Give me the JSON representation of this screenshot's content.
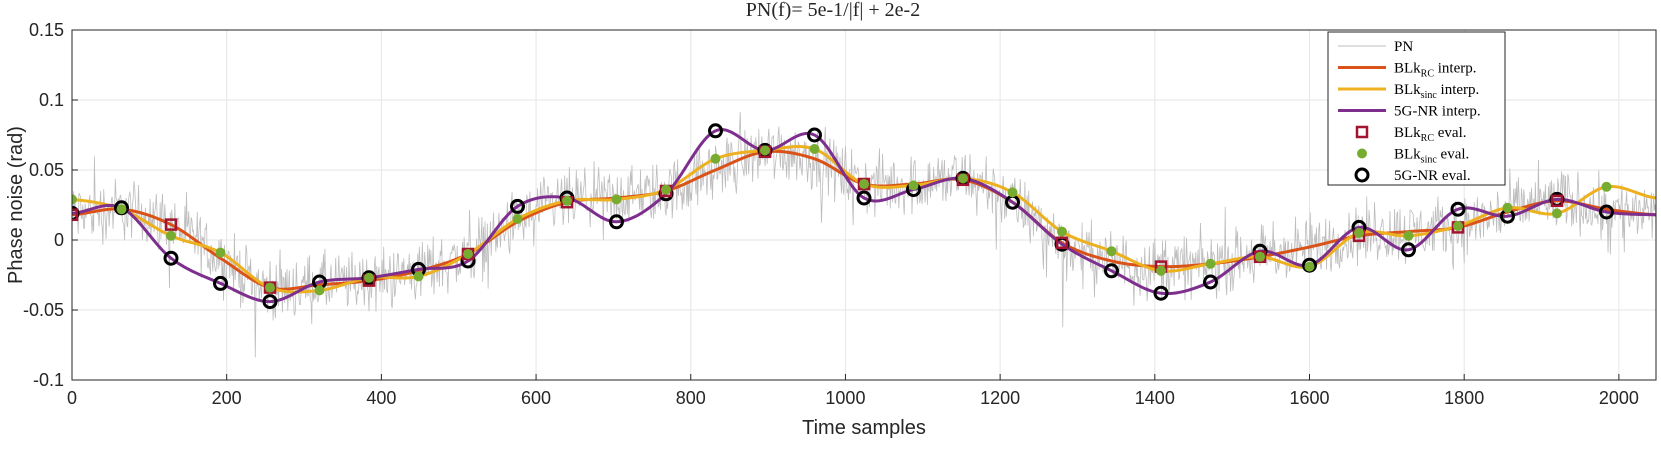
{
  "chart_data": {
    "type": "line",
    "title": "PN(f)= 5e-1/|f| + 2e-2",
    "xlabel": "Time samples",
    "ylabel": "Phase noise (rad)",
    "xlim": [
      0,
      2048
    ],
    "ylim": [
      -0.1,
      0.15
    ],
    "xticks": [
      0,
      200,
      400,
      600,
      800,
      1000,
      1200,
      1400,
      1600,
      1800,
      2000
    ],
    "yticks": [
      -0.1,
      -0.05,
      0,
      0.05,
      0.1,
      0.15
    ],
    "ytick_labels": [
      "-0.1",
      "-0.05",
      "0",
      "0.05",
      "0.1",
      "0.15"
    ],
    "grid": true,
    "legend_position": "top-right",
    "colors": {
      "pn": "#bdbdbd",
      "rc": "#d95319",
      "sinc": "#edb120",
      "nr": "#7e2f8e",
      "rc_marker": "#a2142f",
      "sinc_marker": "#77ac30",
      "nr_marker": "#000000"
    },
    "legend": [
      {
        "key": "pn",
        "kind": "line",
        "base": "PN",
        "sub": "",
        "suffix": ""
      },
      {
        "key": "rc",
        "kind": "line",
        "base": "BLk",
        "sub": "RC",
        "suffix": " interp."
      },
      {
        "key": "sinc",
        "kind": "line",
        "base": "BLk",
        "sub": "sinc",
        "suffix": " interp."
      },
      {
        "key": "nr",
        "kind": "line",
        "base": "5G-NR interp.",
        "sub": "",
        "suffix": ""
      },
      {
        "key": "rc_marker",
        "kind": "square",
        "base": "BLk",
        "sub": "RC",
        "suffix": " eval."
      },
      {
        "key": "sinc_marker",
        "kind": "dot",
        "base": "BLk",
        "sub": "sinc",
        "suffix": " eval."
      },
      {
        "key": "nr_marker",
        "kind": "circle",
        "base": "5G-NR eval.",
        "sub": "",
        "suffix": ""
      }
    ],
    "series": [
      {
        "name": "BLkRC interp.",
        "key": "rc",
        "style": "line",
        "x": [
          0,
          64,
          128,
          192,
          256,
          320,
          384,
          448,
          512,
          576,
          640,
          704,
          768,
          832,
          896,
          960,
          1024,
          1088,
          1152,
          1216,
          1280,
          1344,
          1408,
          1472,
          1536,
          1600,
          1664,
          1728,
          1792,
          1856,
          1920,
          1984,
          2048
        ],
        "y": [
          0.018,
          0.022,
          0.011,
          -0.013,
          -0.034,
          -0.032,
          -0.029,
          -0.022,
          -0.01,
          0.013,
          0.027,
          0.03,
          0.035,
          0.05,
          0.063,
          0.058,
          0.04,
          0.04,
          0.043,
          0.027,
          -0.002,
          -0.015,
          -0.019,
          -0.017,
          -0.012,
          -0.005,
          0.003,
          0.006,
          0.009,
          0.02,
          0.028,
          0.022,
          0.018
        ]
      },
      {
        "name": "BLksinc interp.",
        "key": "sinc",
        "style": "line",
        "x": [
          0,
          64,
          128,
          192,
          256,
          320,
          384,
          448,
          512,
          576,
          640,
          704,
          768,
          832,
          896,
          960,
          1024,
          1088,
          1152,
          1216,
          1280,
          1344,
          1408,
          1472,
          1536,
          1600,
          1664,
          1728,
          1792,
          1856,
          1920,
          1984,
          2048
        ],
        "y": [
          0.029,
          0.022,
          0.003,
          -0.009,
          -0.034,
          -0.036,
          -0.027,
          -0.026,
          -0.01,
          0.015,
          0.028,
          0.029,
          0.036,
          0.058,
          0.064,
          0.065,
          0.04,
          0.039,
          0.044,
          0.034,
          0.006,
          -0.008,
          -0.022,
          -0.017,
          -0.012,
          -0.019,
          0.005,
          0.003,
          0.01,
          0.023,
          0.019,
          0.038,
          0.03
        ]
      },
      {
        "name": "5G-NR interp.",
        "key": "nr",
        "style": "line",
        "x": [
          0,
          64,
          128,
          192,
          256,
          320,
          384,
          448,
          512,
          576,
          640,
          704,
          768,
          832,
          896,
          960,
          1024,
          1088,
          1152,
          1216,
          1280,
          1344,
          1408,
          1472,
          1536,
          1600,
          1664,
          1728,
          1792,
          1856,
          1920,
          1984,
          2048
        ],
        "y": [
          0.019,
          0.023,
          -0.013,
          -0.031,
          -0.044,
          -0.03,
          -0.027,
          -0.021,
          -0.015,
          0.024,
          0.03,
          0.013,
          0.033,
          0.078,
          0.064,
          0.075,
          0.03,
          0.036,
          0.044,
          0.027,
          -0.003,
          -0.022,
          -0.038,
          -0.03,
          -0.008,
          -0.018,
          0.009,
          -0.007,
          0.022,
          0.017,
          0.029,
          0.02,
          0.018
        ]
      },
      {
        "name": "BLkRC eval.",
        "key": "rc_marker",
        "style": "square",
        "x": [
          0,
          128,
          256,
          384,
          512,
          640,
          768,
          896,
          1024,
          1152,
          1280,
          1408,
          1536,
          1664,
          1792,
          1920
        ],
        "y": [
          0.018,
          0.011,
          -0.034,
          -0.029,
          -0.01,
          0.027,
          0.035,
          0.063,
          0.04,
          0.043,
          -0.002,
          -0.019,
          -0.012,
          0.003,
          0.009,
          0.028
        ]
      },
      {
        "name": "BLksinc eval.",
        "key": "sinc_marker",
        "style": "dot",
        "x": [
          0,
          64,
          128,
          192,
          256,
          320,
          384,
          448,
          512,
          576,
          640,
          704,
          768,
          832,
          896,
          960,
          1024,
          1088,
          1152,
          1216,
          1280,
          1344,
          1408,
          1472,
          1536,
          1600,
          1664,
          1728,
          1792,
          1856,
          1920,
          1984
        ],
        "y": [
          0.029,
          0.022,
          0.003,
          -0.009,
          -0.034,
          -0.036,
          -0.027,
          -0.026,
          -0.01,
          0.015,
          0.028,
          0.029,
          0.036,
          0.058,
          0.064,
          0.065,
          0.04,
          0.039,
          0.044,
          0.034,
          0.006,
          -0.008,
          -0.022,
          -0.017,
          -0.012,
          -0.019,
          0.005,
          0.003,
          0.01,
          0.023,
          0.019,
          0.038
        ]
      },
      {
        "name": "5G-NR eval.",
        "key": "nr_marker",
        "style": "circle",
        "x": [
          0,
          64,
          128,
          192,
          256,
          320,
          384,
          448,
          512,
          576,
          640,
          704,
          768,
          832,
          896,
          960,
          1024,
          1088,
          1152,
          1216,
          1280,
          1344,
          1408,
          1472,
          1536,
          1600,
          1664,
          1728,
          1792,
          1856,
          1920,
          1984
        ],
        "y": [
          0.019,
          0.023,
          -0.013,
          -0.031,
          -0.044,
          -0.03,
          -0.027,
          -0.021,
          -0.015,
          0.024,
          0.03,
          0.013,
          0.033,
          0.078,
          0.064,
          0.075,
          0.03,
          0.036,
          0.044,
          0.027,
          -0.003,
          -0.022,
          -0.038,
          -0.03,
          -0.008,
          -0.018,
          0.009,
          -0.007,
          0.022,
          0.017,
          0.029,
          0.02
        ]
      }
    ],
    "pn_series": {
      "name": "PN",
      "key": "pn",
      "style": "noise",
      "description_of_trend": "noisy samples around BLkRC curve",
      "noise_amplitude": 0.018,
      "n_points": 2048
    }
  }
}
